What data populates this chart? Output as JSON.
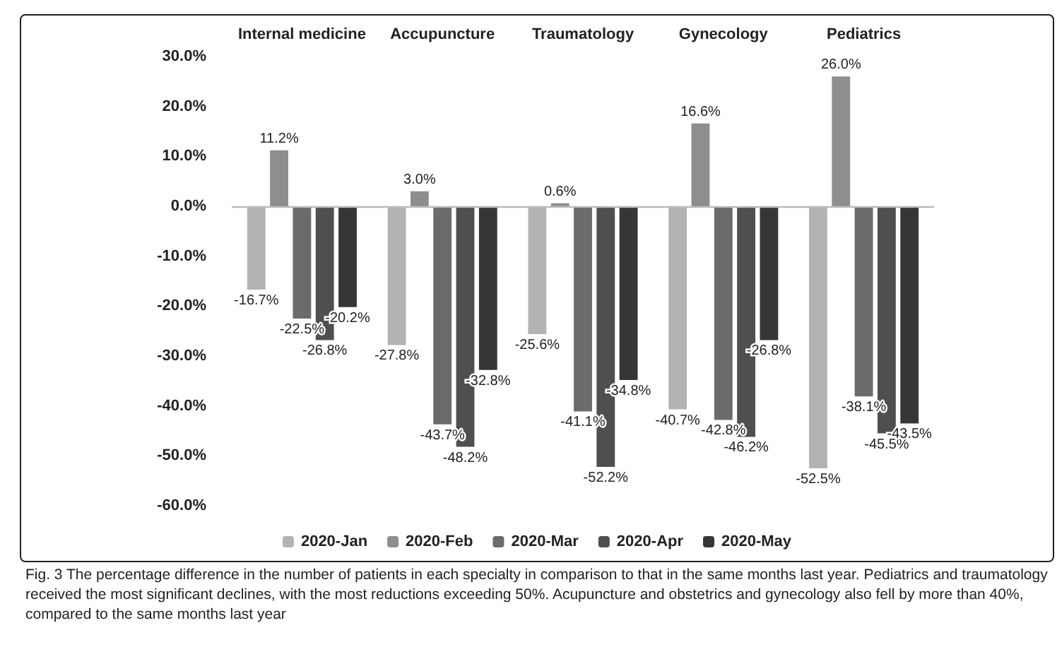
{
  "chart_data": {
    "type": "bar",
    "categories": [
      "Internal medicine",
      "Accupuncture",
      "Traumatology",
      "Gynecology",
      "Pediatrics"
    ],
    "series": [
      {
        "name": "2020-Jan",
        "color": "#b3b3b3",
        "values": [
          -16.7,
          -27.8,
          -25.6,
          -40.7,
          -52.5
        ],
        "value_labels": [
          "-16.7%",
          "-27.8%",
          "-25.6%",
          "-40.7%",
          "-52.5%"
        ]
      },
      {
        "name": "2020-Feb",
        "color": "#8e8e8e",
        "values": [
          11.2,
          3.0,
          0.6,
          16.6,
          26.0
        ],
        "value_labels": [
          "11.2%",
          "3.0%",
          "0.6%",
          "16.6%",
          "26.0%"
        ]
      },
      {
        "name": "2020-Mar",
        "color": "#6b6b6b",
        "values": [
          -22.5,
          -43.7,
          -41.1,
          -42.8,
          -38.1
        ],
        "value_labels": [
          "-22.5%",
          "-43.7%",
          "-41.1%",
          "-42.8%",
          "-38.1%"
        ]
      },
      {
        "name": "2020-Apr",
        "color": "#4f4f4f",
        "values": [
          -26.8,
          -48.2,
          -52.2,
          -46.2,
          -45.5
        ],
        "value_labels": [
          "-26.8%",
          "-48.2%",
          "-52.2%",
          "-46.2%",
          "-45.5%"
        ]
      },
      {
        "name": "2020-May",
        "color": "#363636",
        "values": [
          -20.2,
          -32.8,
          -34.8,
          -26.8,
          -43.5
        ],
        "value_labels": [
          "-20.2%",
          "-32.8%",
          "-34.8%",
          "-26.8%",
          "-43.5%"
        ]
      }
    ],
    "ylim": [
      -60,
      30
    ],
    "yticks": [
      {
        "value": 30,
        "label": "30.0%"
      },
      {
        "value": 20,
        "label": "20.0%"
      },
      {
        "value": 10,
        "label": "10.0%"
      },
      {
        "value": 0,
        "label": "0.0%"
      },
      {
        "value": -10,
        "label": "-10.0%"
      },
      {
        "value": -20,
        "label": "-20.0%"
      },
      {
        "value": -30,
        "label": "-30.0%"
      },
      {
        "value": -40,
        "label": "-40.0%"
      },
      {
        "value": -50,
        "label": "-50.0%"
      },
      {
        "value": -60,
        "label": "-60.0%"
      }
    ],
    "grid": false,
    "legend": "bottom",
    "ref_lines": [
      {
        "axis": "y",
        "value": 0,
        "color": "#bbbbbb"
      }
    ],
    "annotations": [
      "Fig. 3 The percentage difference in the number of patients in each specialty in comparison to that in the same months last year. Pediatrics and traumatology received the most significant declines, with the most reductions exceeding 50%. Acupuncture and obstetrics and gynecology also fell by more than 40%, compared to the same months last year"
    ]
  }
}
